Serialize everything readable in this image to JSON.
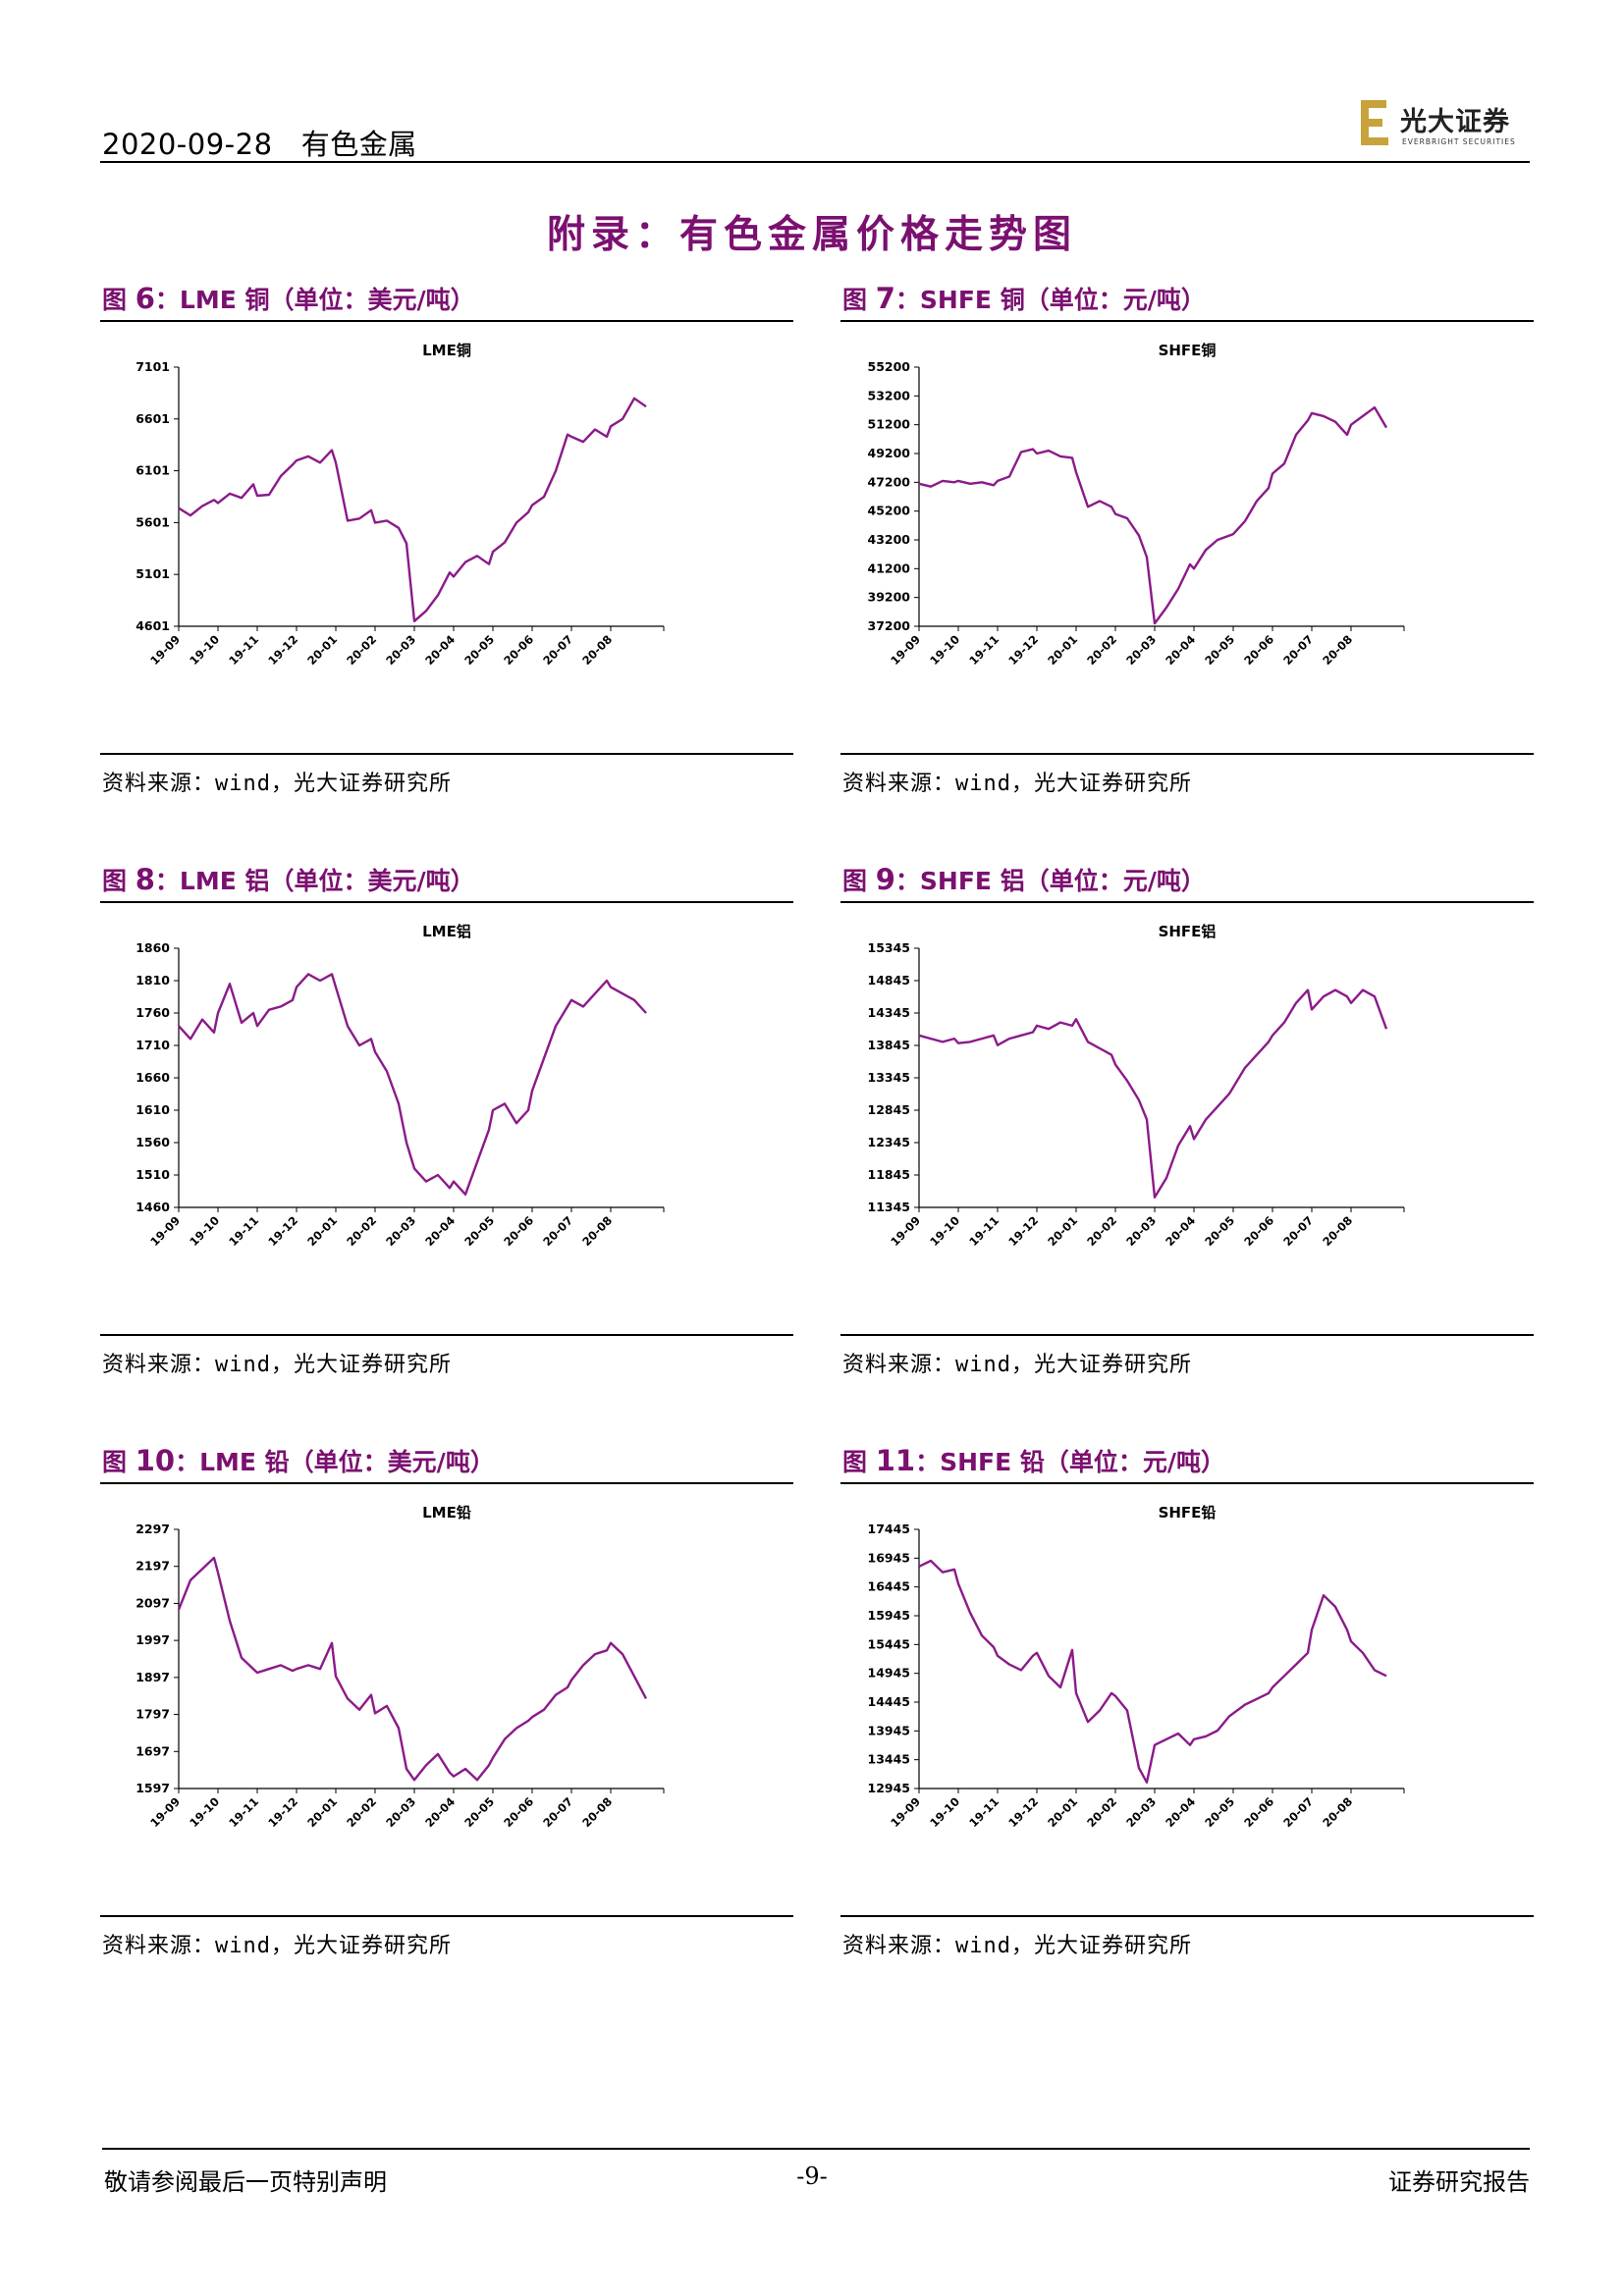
{
  "header": {
    "date": "2020-09-28",
    "category": "有色金属",
    "logo_cn": "光大证券",
    "logo_en": "EVERBRIGHT SECURITIES"
  },
  "title": "附录：有色金属价格走势图",
  "colors": {
    "accent": "#7b1070",
    "line": "#8b1a89",
    "logo_gold": "#c8a23a"
  },
  "source_text": "资料来源：wind，光大证券研究所",
  "figures": [
    {
      "id": "fig6",
      "label_prefix": "图",
      "number": "6",
      "label_rest": "：LME 铜（单位：美元/吨）"
    },
    {
      "id": "fig7",
      "label_prefix": "图",
      "number": "7",
      "label_rest": "：SHFE 铜（单位：元/吨）"
    },
    {
      "id": "fig8",
      "label_prefix": "图",
      "number": "8",
      "label_rest": "：LME 铝（单位：美元/吨）"
    },
    {
      "id": "fig9",
      "label_prefix": "图",
      "number": "9",
      "label_rest": "：SHFE 铝（单位：元/吨）"
    },
    {
      "id": "fig10",
      "label_prefix": "图",
      "number": "10",
      "label_rest": "：LME 铅（单位：美元/吨）"
    },
    {
      "id": "fig11",
      "label_prefix": "图",
      "number": "11",
      "label_rest": "：SHFE 铅（单位：元/吨）"
    }
  ],
  "chart_data": [
    {
      "type": "line",
      "title": "LME铜",
      "xlabel": "",
      "ylabel": "",
      "ylim": [
        4601,
        7101
      ],
      "yticks": [
        "7101",
        "6601",
        "6101",
        "5601",
        "5101",
        "4601"
      ],
      "categories": [
        "19-09",
        "19-10",
        "19-11",
        "19-12",
        "20-01",
        "20-02",
        "20-03",
        "20-04",
        "20-05",
        "20-06",
        "20-07",
        "20-08"
      ],
      "x": [
        0,
        0.3,
        0.6,
        0.9,
        1,
        1.3,
        1.6,
        1.9,
        2,
        2.3,
        2.6,
        2.9,
        3,
        3.3,
        3.6,
        3.9,
        4,
        4.3,
        4.6,
        4.9,
        5,
        5.3,
        5.6,
        5.8,
        6,
        6.3,
        6.6,
        6.9,
        7,
        7.3,
        7.6,
        7.9,
        8,
        8.3,
        8.6,
        8.9,
        9,
        9.3,
        9.6,
        9.9,
        10,
        10.3,
        10.6,
        10.9,
        11,
        11.3,
        11.6,
        11.9
      ],
      "values": [
        5740,
        5670,
        5760,
        5820,
        5790,
        5880,
        5840,
        5970,
        5860,
        5870,
        6050,
        6160,
        6200,
        6240,
        6180,
        6300,
        6180,
        5620,
        5640,
        5720,
        5600,
        5620,
        5550,
        5400,
        4650,
        4750,
        4900,
        5120,
        5080,
        5220,
        5280,
        5200,
        5320,
        5410,
        5600,
        5700,
        5770,
        5850,
        6100,
        6450,
        6430,
        6380,
        6500,
        6430,
        6530,
        6600,
        6800,
        6720
      ]
    },
    {
      "type": "line",
      "title": "SHFE铜",
      "xlabel": "",
      "ylabel": "",
      "ylim": [
        37200,
        55200
      ],
      "yticks": [
        "55200",
        "53200",
        "51200",
        "49200",
        "47200",
        "45200",
        "43200",
        "41200",
        "39200",
        "37200"
      ],
      "categories": [
        "19-09",
        "19-10",
        "19-11",
        "19-12",
        "20-01",
        "20-02",
        "20-03",
        "20-04",
        "20-05",
        "20-06",
        "20-07",
        "20-08"
      ],
      "x": [
        0,
        0.3,
        0.6,
        0.9,
        1,
        1.3,
        1.6,
        1.9,
        2,
        2.3,
        2.6,
        2.9,
        3,
        3.3,
        3.6,
        3.9,
        4,
        4.3,
        4.6,
        4.9,
        5,
        5.3,
        5.6,
        5.8,
        6,
        6.3,
        6.6,
        6.9,
        7,
        7.3,
        7.6,
        7.9,
        8,
        8.3,
        8.6,
        8.9,
        9,
        9.3,
        9.6,
        9.9,
        10,
        10.3,
        10.6,
        10.9,
        11,
        11.3,
        11.6,
        11.9
      ],
      "values": [
        47100,
        46900,
        47300,
        47200,
        47300,
        47100,
        47200,
        47000,
        47300,
        47600,
        49300,
        49500,
        49200,
        49400,
        49000,
        48900,
        47900,
        45500,
        45900,
        45500,
        45000,
        44700,
        43500,
        42000,
        37400,
        38500,
        39800,
        41500,
        41200,
        42500,
        43200,
        43500,
        43600,
        44500,
        45900,
        46800,
        47800,
        48500,
        50500,
        51500,
        52000,
        51800,
        51400,
        50500,
        51200,
        51800,
        52400,
        51000
      ]
    },
    {
      "type": "line",
      "title": "LME铝",
      "xlabel": "",
      "ylabel": "",
      "ylim": [
        1460,
        1860
      ],
      "yticks": [
        "1860",
        "1810",
        "1760",
        "1710",
        "1660",
        "1610",
        "1560",
        "1510",
        "1460"
      ],
      "categories": [
        "19-09",
        "19-10",
        "19-11",
        "19-12",
        "20-01",
        "20-02",
        "20-03",
        "20-04",
        "20-05",
        "20-06",
        "20-07",
        "20-08"
      ],
      "x": [
        0,
        0.3,
        0.6,
        0.9,
        1,
        1.3,
        1.6,
        1.9,
        2,
        2.3,
        2.6,
        2.9,
        3,
        3.3,
        3.6,
        3.9,
        4,
        4.3,
        4.6,
        4.9,
        5,
        5.3,
        5.6,
        5.8,
        6,
        6.3,
        6.6,
        6.9,
        7,
        7.3,
        7.6,
        7.9,
        8,
        8.3,
        8.6,
        8.9,
        9,
        9.3,
        9.6,
        9.9,
        10,
        10.3,
        10.6,
        10.9,
        11,
        11.3,
        11.6,
        11.9
      ],
      "values": [
        1740,
        1720,
        1750,
        1730,
        1760,
        1805,
        1745,
        1760,
        1740,
        1765,
        1770,
        1780,
        1800,
        1820,
        1810,
        1820,
        1800,
        1740,
        1710,
        1720,
        1700,
        1670,
        1620,
        1560,
        1520,
        1500,
        1510,
        1490,
        1500,
        1480,
        1530,
        1580,
        1610,
        1620,
        1590,
        1610,
        1640,
        1690,
        1740,
        1770,
        1780,
        1770,
        1790,
        1810,
        1800,
        1790,
        1780,
        1760
      ]
    },
    {
      "type": "line",
      "title": "SHFE铝",
      "xlabel": "",
      "ylabel": "",
      "ylim": [
        11345,
        15345
      ],
      "yticks": [
        "15345",
        "14845",
        "14345",
        "13845",
        "13345",
        "12845",
        "12345",
        "11845",
        "11345"
      ],
      "categories": [
        "19-09",
        "19-10",
        "19-11",
        "19-12",
        "20-01",
        "20-02",
        "20-03",
        "20-04",
        "20-05",
        "20-06",
        "20-07",
        "20-08"
      ],
      "x": [
        0,
        0.3,
        0.6,
        0.9,
        1,
        1.3,
        1.6,
        1.9,
        2,
        2.3,
        2.6,
        2.9,
        3,
        3.3,
        3.6,
        3.9,
        4,
        4.3,
        4.6,
        4.9,
        5,
        5.3,
        5.6,
        5.8,
        6,
        6.3,
        6.6,
        6.9,
        7,
        7.3,
        7.6,
        7.9,
        8,
        8.3,
        8.6,
        8.9,
        9,
        9.3,
        9.6,
        9.9,
        10,
        10.3,
        10.6,
        10.9,
        11,
        11.3,
        11.6,
        11.9
      ],
      "values": [
        14000,
        13950,
        13900,
        13950,
        13880,
        13900,
        13950,
        14000,
        13850,
        13950,
        14000,
        14050,
        14150,
        14100,
        14200,
        14150,
        14250,
        13900,
        13800,
        13700,
        13550,
        13300,
        13000,
        12700,
        11500,
        11800,
        12300,
        12600,
        12400,
        12700,
        12900,
        13100,
        13200,
        13500,
        13700,
        13900,
        14000,
        14200,
        14500,
        14700,
        14400,
        14600,
        14700,
        14600,
        14500,
        14700,
        14600,
        14100
      ]
    },
    {
      "type": "line",
      "title": "LME铅",
      "xlabel": "",
      "ylabel": "",
      "ylim": [
        1597,
        2297
      ],
      "yticks": [
        "2297",
        "2197",
        "2097",
        "1997",
        "1897",
        "1797",
        "1697",
        "1597"
      ],
      "categories": [
        "19-09",
        "19-10",
        "19-11",
        "19-12",
        "20-01",
        "20-02",
        "20-03",
        "20-04",
        "20-05",
        "20-06",
        "20-07",
        "20-08"
      ],
      "x": [
        0,
        0.3,
        0.6,
        0.9,
        1,
        1.3,
        1.6,
        1.9,
        2,
        2.3,
        2.6,
        2.9,
        3,
        3.3,
        3.6,
        3.9,
        4,
        4.3,
        4.6,
        4.9,
        5,
        5.3,
        5.6,
        5.8,
        6,
        6.3,
        6.6,
        6.9,
        7,
        7.3,
        7.6,
        7.9,
        8,
        8.3,
        8.6,
        8.9,
        9,
        9.3,
        9.6,
        9.9,
        10,
        10.3,
        10.6,
        10.9,
        11,
        11.3,
        11.6,
        11.9
      ],
      "values": [
        2080,
        2160,
        2190,
        2220,
        2180,
        2050,
        1950,
        1920,
        1910,
        1920,
        1930,
        1915,
        1920,
        1930,
        1920,
        1990,
        1900,
        1840,
        1810,
        1850,
        1800,
        1820,
        1760,
        1650,
        1620,
        1660,
        1690,
        1640,
        1630,
        1650,
        1620,
        1660,
        1680,
        1730,
        1760,
        1780,
        1790,
        1810,
        1850,
        1870,
        1890,
        1930,
        1960,
        1970,
        1990,
        1960,
        1900,
        1840
      ]
    },
    {
      "type": "line",
      "title": "SHFE铅",
      "xlabel": "",
      "ylabel": "",
      "ylim": [
        12945,
        17445
      ],
      "yticks": [
        "17445",
        "16945",
        "16445",
        "15945",
        "15445",
        "14945",
        "14445",
        "13945",
        "13445",
        "12945"
      ],
      "categories": [
        "19-09",
        "19-10",
        "19-11",
        "19-12",
        "20-01",
        "20-02",
        "20-03",
        "20-04",
        "20-05",
        "20-06",
        "20-07",
        "20-08"
      ],
      "x": [
        0,
        0.3,
        0.6,
        0.9,
        1,
        1.3,
        1.6,
        1.9,
        2,
        2.3,
        2.6,
        2.9,
        3,
        3.3,
        3.6,
        3.9,
        4,
        4.3,
        4.6,
        4.9,
        5,
        5.3,
        5.6,
        5.8,
        6,
        6.3,
        6.6,
        6.9,
        7,
        7.3,
        7.6,
        7.9,
        8,
        8.3,
        8.6,
        8.9,
        9,
        9.3,
        9.6,
        9.9,
        10,
        10.3,
        10.6,
        10.9,
        11,
        11.3,
        11.6,
        11.9
      ],
      "values": [
        16800,
        16900,
        16700,
        16750,
        16500,
        16000,
        15600,
        15400,
        15250,
        15100,
        15000,
        15250,
        15300,
        14900,
        14700,
        15350,
        14600,
        14100,
        14300,
        14600,
        14550,
        14300,
        13300,
        13050,
        13700,
        13800,
        13900,
        13700,
        13800,
        13850,
        13950,
        14200,
        14250,
        14400,
        14500,
        14600,
        14700,
        14900,
        15100,
        15300,
        15700,
        16300,
        16100,
        15700,
        15500,
        15300,
        15000,
        14900
      ]
    }
  ],
  "footer": {
    "left": "敬请参阅最后一页特别声明",
    "page": "-9-",
    "right": "证券研究报告"
  }
}
